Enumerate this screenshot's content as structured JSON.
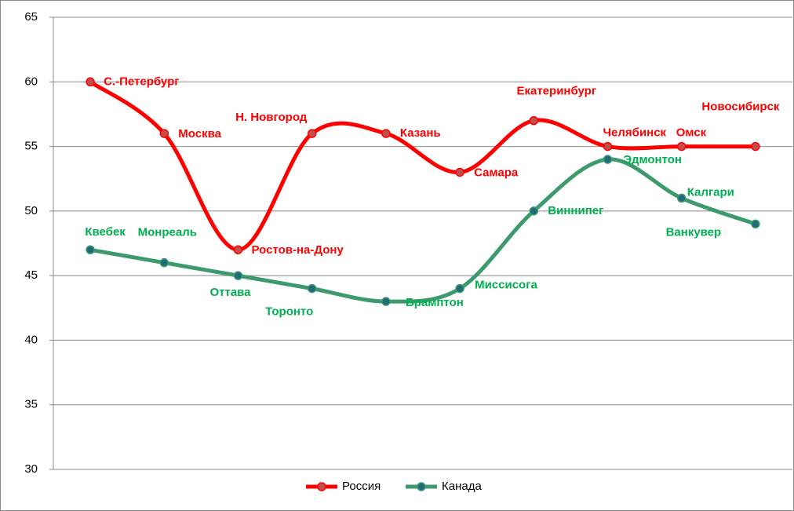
{
  "chart_data": {
    "type": "line",
    "smooth": true,
    "categories": [
      null,
      null,
      null,
      null,
      null,
      null,
      null,
      null,
      null,
      null
    ],
    "series": [
      {
        "name": "Россия",
        "color": "#ff0000",
        "marker_color": "#c0504d",
        "label_color": "#ff0000",
        "values": [
          60,
          56,
          47,
          56,
          56,
          53,
          57,
          55,
          55,
          55
        ],
        "point_labels": [
          "С.-Петербург",
          "Москва",
          "Ростов-на-Дону",
          "Н. Новгород",
          "Казань",
          "Самара",
          "Екатеринбург",
          "Челябинск",
          "Омск",
          "Новосибирск"
        ]
      },
      {
        "name": "Канада",
        "color": "#3c9a6c",
        "marker_color": "#1f6b7a",
        "label_color": "#00b050",
        "values": [
          47,
          46,
          45,
          44,
          43,
          44,
          50,
          54,
          51,
          49
        ],
        "point_labels": [
          "Квебек",
          "Монреаль",
          "Оттава",
          "Торонто",
          "Брамптон",
          "Миссисога",
          "Виннипег",
          "Эдмонтон",
          "Калгари",
          "Ванкувер"
        ]
      }
    ],
    "ylim": [
      30,
      65
    ],
    "yticks": [
      30,
      35,
      40,
      45,
      50,
      55,
      60,
      65
    ],
    "grid": true,
    "legend": "bottom"
  }
}
